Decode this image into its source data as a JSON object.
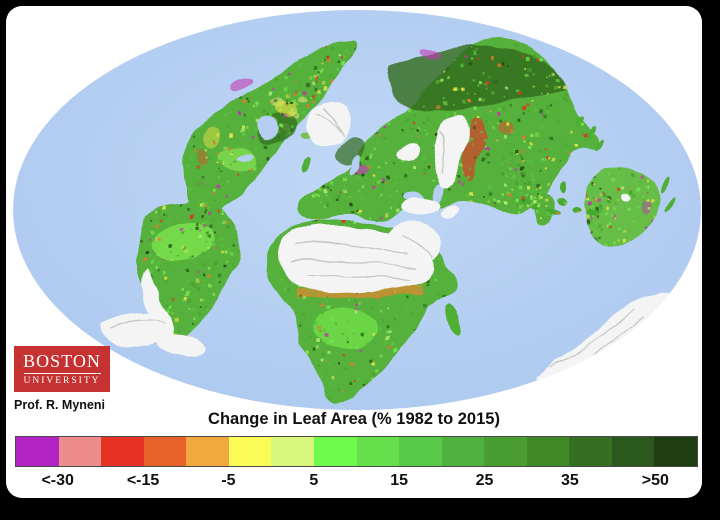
{
  "figure": {
    "background_color": "#000000",
    "card_color": "#ffffff"
  },
  "branding": {
    "logo_line1": "BOSTON",
    "logo_line2": "UNIVERSITY",
    "logo_color": "#c53231",
    "credit": "Prof. R. Myneni"
  },
  "map": {
    "ocean_color": "#b5cff2",
    "land_base_color": "#55b13a",
    "no_data_color": "#f4f4f4",
    "regions": [
      "North America",
      "Greenland",
      "South America",
      "Europe",
      "Africa",
      "Sahara (barren, no data)",
      "Arabian Peninsula (barren, no data)",
      "Asia",
      "Tibetan Plateau (no data)",
      "India",
      "Southeast Asia",
      "Australia",
      "New Zealand",
      "Antarctica (no data)"
    ],
    "texture_palette": [
      {
        "color": "#57c23e",
        "weight": 24
      },
      {
        "color": "#4aa231",
        "weight": 20
      },
      {
        "color": "#79e34f",
        "weight": 13
      },
      {
        "color": "#a9e96b",
        "weight": 7
      },
      {
        "color": "#2d631c",
        "weight": 10
      },
      {
        "color": "#1f4a12",
        "weight": 5
      },
      {
        "color": "#e3e34c",
        "weight": 8
      },
      {
        "color": "#e07a30",
        "weight": 5
      },
      {
        "color": "#d63b24",
        "weight": 4
      },
      {
        "color": "#c433ae",
        "weight": 4
      }
    ]
  },
  "legend": {
    "title": "Change in Leaf Area (% 1982 to 2015)",
    "labels": [
      "<-30",
      "<-15",
      "-5",
      "5",
      "15",
      "25",
      "35",
      ">50"
    ],
    "colors": [
      "#b123c3",
      "#ec8c8c",
      "#e63222",
      "#e7622b",
      "#f1a83e",
      "#fbfc55",
      "#d9f77d",
      "#6ffb4e",
      "#65e04b",
      "#58c948",
      "#50b23e",
      "#4a9d31",
      "#408927",
      "#356f22",
      "#2b581c",
      "#1f3d12"
    ],
    "border_color": "#4a4a4a"
  },
  "chart_data": {
    "type": "heatmap",
    "title": "Change in Leaf Area (% 1982 to 2015)",
    "legend_position": "bottom",
    "scale_labels": [
      "<-30",
      "<-15",
      "-5",
      "5",
      "15",
      "25",
      "35",
      ">50"
    ],
    "scale_colors": [
      "#b123c3",
      "#ec8c8c",
      "#e63222",
      "#e7622b",
      "#f1a83e",
      "#fbfc55",
      "#d9f77d",
      "#6ffb4e",
      "#65e04b",
      "#58c948",
      "#50b23e",
      "#4a9d31",
      "#408927",
      "#356f22",
      "#2b581c",
      "#1f3d12"
    ],
    "units": "%"
  }
}
